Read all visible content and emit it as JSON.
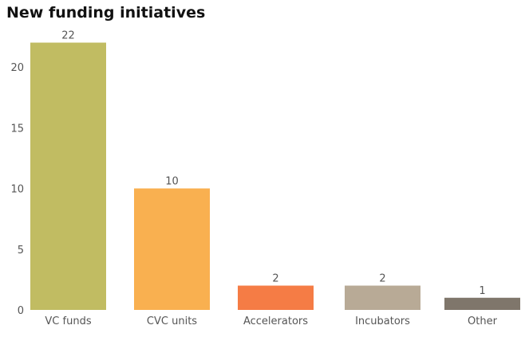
{
  "chart_data": {
    "type": "bar",
    "title": "New funding initiatives",
    "categories": [
      "VC funds",
      "CVC units",
      "Accelerators",
      "Incubators",
      "Other"
    ],
    "values": [
      22,
      10,
      2,
      2,
      1
    ],
    "colors": [
      "#c1bc62",
      "#f9b050",
      "#f57c45",
      "#b8aa96",
      "#7f766b"
    ],
    "yticks": [
      0,
      5,
      10,
      15,
      20
    ],
    "ylim": [
      0,
      22
    ],
    "xlabel": "",
    "ylabel": "",
    "grid": false
  }
}
